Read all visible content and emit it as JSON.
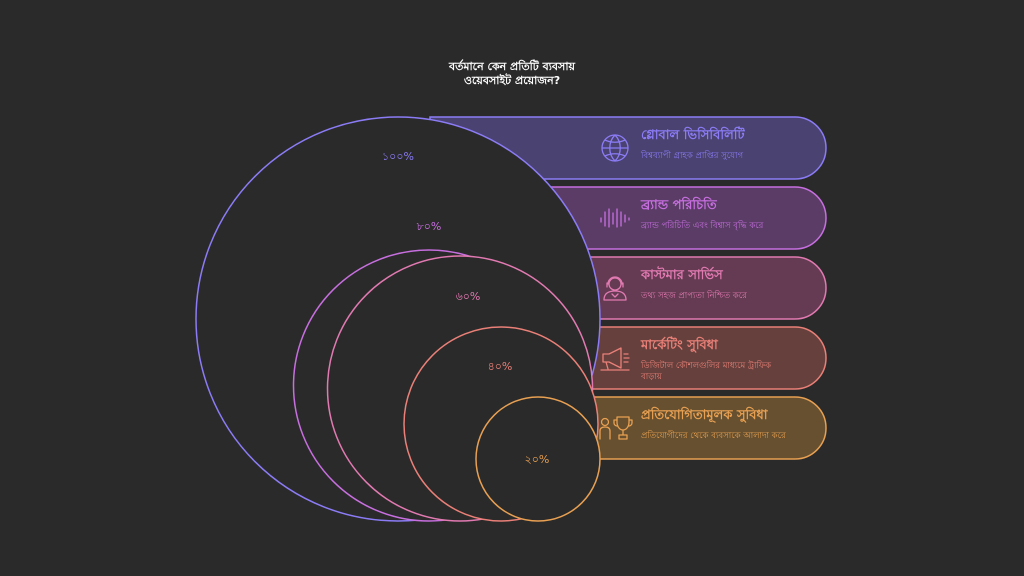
{
  "title": {
    "line1": "বর্তমানে কেন প্রতিটি ব্যবসায়",
    "line2": "ওয়েবসাইট প্রয়োজন?"
  },
  "levels": [
    {
      "percent": "১০০%",
      "title": "গ্লোবাল ভিসিবিলিটি",
      "description": [
        "বিশ্বব্যাপী গ্রাহক প্রাপ্তির সুযোগ"
      ],
      "icon": "globe-icon",
      "color": "#8b7cf6",
      "fill": "#4a4270"
    },
    {
      "percent": "৮০%",
      "title": "ব্র্যান্ড পরিচিতি",
      "description": [
        "ব্র্যান্ড পরিচিতি এবং বিশ্বাস বৃদ্ধি করে"
      ],
      "icon": "soundwave-icon",
      "color": "#c86fe0",
      "fill": "#5a3c66"
    },
    {
      "percent": "৬০%",
      "title": "কাস্টমার সার্ভিস",
      "description": [
        "তথ্য সহজ প্রাপ্যতা নিশ্চিত করে"
      ],
      "icon": "support-agent-icon",
      "color": "#e27ab2",
      "fill": "#643b52"
    },
    {
      "percent": "৪০%",
      "title": "মার্কেটিং সুবিধা",
      "description": [
        "ডিজিটাল কৌশলগুলির মাধ্যমে ট্রাফিক",
        "বাড়ায়"
      ],
      "icon": "megaphone-icon",
      "color": "#ea8078",
      "fill": "#66403c"
    },
    {
      "percent": "২০%",
      "title": "প্রতিযোগিতামূলক সুবিধা",
      "description": [
        "প্রতিযোগীদের থেকে ব্যবসাকে আলাদা করে"
      ],
      "icon": "trophy-people-icon",
      "color": "#e8a052",
      "fill": "#66502f"
    }
  ]
}
